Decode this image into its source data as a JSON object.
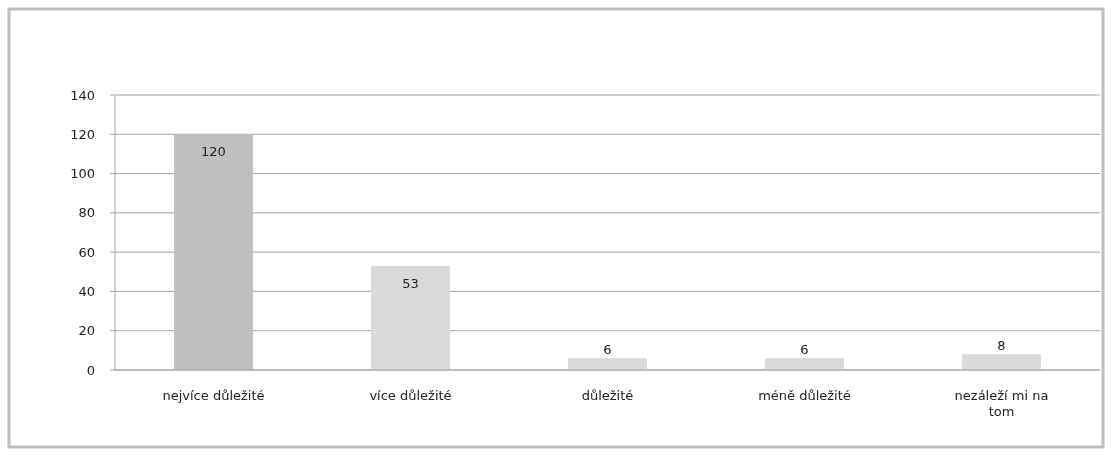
{
  "chart_data": {
    "type": "bar",
    "categories": [
      "nejvíce důležité",
      "více důležité",
      "důležité",
      "méně důležité",
      "nezáleží mi na tom"
    ],
    "values": [
      120,
      53,
      6,
      6,
      8
    ],
    "colors": [
      "#bfbfbf",
      "#d9d9d9",
      "#d9d9d9",
      "#d9d9d9",
      "#d9d9d9"
    ],
    "ylim": [
      0,
      140
    ],
    "yticks": [
      0,
      20,
      40,
      60,
      80,
      100,
      120,
      140
    ],
    "grid": "y",
    "data_labels": true
  }
}
